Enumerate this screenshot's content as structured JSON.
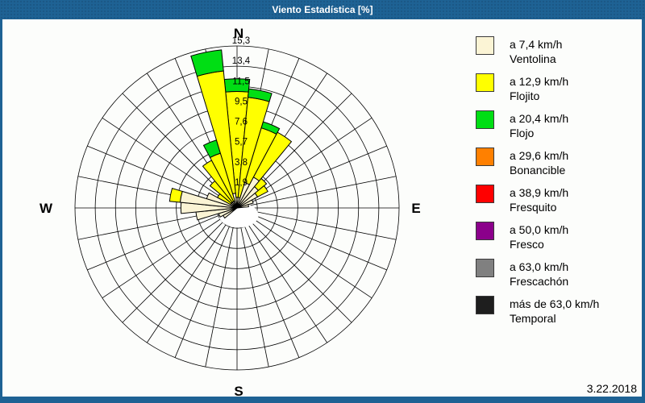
{
  "window": {
    "title": "Viento Estadística [%]",
    "status_date": "3.22.2018",
    "frame_color": "#1E6294",
    "background_color": "#FCFDFB"
  },
  "chart_data": {
    "type": "windrose-stacked-polar",
    "unit": "%",
    "sectors": 32,
    "sector_width_deg": 11.25,
    "compass_labels": {
      "north": "N",
      "east": "E",
      "south": "S",
      "west": "W"
    },
    "ring_labels": [
      "1,9",
      "3,8",
      "5,7",
      "7,6",
      "9,5",
      "11,5",
      "13,4",
      "15,3"
    ],
    "ring_values": [
      1.9,
      3.8,
      5.7,
      7.6,
      9.5,
      11.5,
      13.4,
      15.3
    ],
    "max_value": 15.3,
    "grid": {
      "rings": 8,
      "spokes": 32,
      "color": "#000000"
    },
    "calm_circle": {
      "shown": true,
      "color": "#FFFFFF"
    },
    "series_order": [
      "ventolina",
      "flojito",
      "flojo"
    ],
    "series_colors": {
      "ventolina": "#FBF4D5",
      "flojito": "#FFFF00",
      "flojo": "#00DE14"
    },
    "petals_note": "values are cumulative radii in % per 11.25-degree sector; null = layer absent",
    "petals": [
      {
        "dir_deg": 0.0,
        "ventolina": 1.0,
        "flojito": 11.0,
        "flojo": 12.2
      },
      {
        "dir_deg": 11.25,
        "ventolina": 1.0,
        "flojito": 10.5,
        "flojo": 11.3
      },
      {
        "dir_deg": 22.5,
        "ventolina": 2.5,
        "flojito": 7.9,
        "flojo": 8.5
      },
      {
        "dir_deg": 33.75,
        "ventolina": 3.3,
        "flojito": 8.1,
        "flojo": null
      },
      {
        "dir_deg": 45.0,
        "ventolina": 2.6,
        "flojito": 3.6,
        "flojo": null
      },
      {
        "dir_deg": 56.25,
        "ventolina": 2.2,
        "flojito": 3.3,
        "flojo": null
      },
      {
        "dir_deg": 67.5,
        "ventolina": 1.6,
        "flojito": null,
        "flojo": null
      },
      {
        "dir_deg": 78.75,
        "ventolina": 1.1,
        "flojito": null,
        "flojo": null
      },
      {
        "dir_deg": 236.25,
        "ventolina": 1.5,
        "flojito": null,
        "flojo": null
      },
      {
        "dir_deg": 247.5,
        "ventolina": 1.8,
        "flojito": null,
        "flojo": null
      },
      {
        "dir_deg": 258.75,
        "ventolina": 3.9,
        "flojito": null,
        "flojo": null
      },
      {
        "dir_deg": 270.0,
        "ventolina": 5.3,
        "flojito": null,
        "flojo": null
      },
      {
        "dir_deg": 281.25,
        "ventolina": 5.4,
        "flojito": 6.4,
        "flojo": null
      },
      {
        "dir_deg": 292.5,
        "ventolina": 3.0,
        "flojito": null,
        "flojo": null
      },
      {
        "dir_deg": 303.75,
        "ventolina": 0.7,
        "flojito": 2.1,
        "flojo": null
      },
      {
        "dir_deg": 315.0,
        "ventolina": 0.7,
        "flojito": 3.3,
        "flojo": null
      },
      {
        "dir_deg": 326.25,
        "ventolina": 0.7,
        "flojito": 5.1,
        "flojo": null
      },
      {
        "dir_deg": 337.5,
        "ventolina": 0.7,
        "flojito": 5.4,
        "flojo": 6.7
      },
      {
        "dir_deg": 348.75,
        "ventolina": 1.4,
        "flojito": 13.0,
        "flojo": 15.0
      }
    ]
  },
  "legend": {
    "items": [
      {
        "speed": "a 7,4 km/h",
        "name": "Ventolina",
        "color": "#FBF4D5"
      },
      {
        "speed": "a 12,9 km/h",
        "name": "Flojito",
        "color": "#FFFF00"
      },
      {
        "speed": "a 20,4 km/h",
        "name": "Flojo",
        "color": "#00DE14"
      },
      {
        "speed": "a 29,6 km/h",
        "name": "Bonancible",
        "color": "#FF8000"
      },
      {
        "speed": "a 38,9 km/h",
        "name": "Fresquito",
        "color": "#FF0000"
      },
      {
        "speed": "a 50,0 km/h",
        "name": "Fresco",
        "color": "#8B008B"
      },
      {
        "speed": "a 63,0 km/h",
        "name": "Frescachón",
        "color": "#808080"
      },
      {
        "speed": "más de 63,0 km/h",
        "name": "Temporal",
        "color": "#1E1E1E"
      }
    ]
  }
}
